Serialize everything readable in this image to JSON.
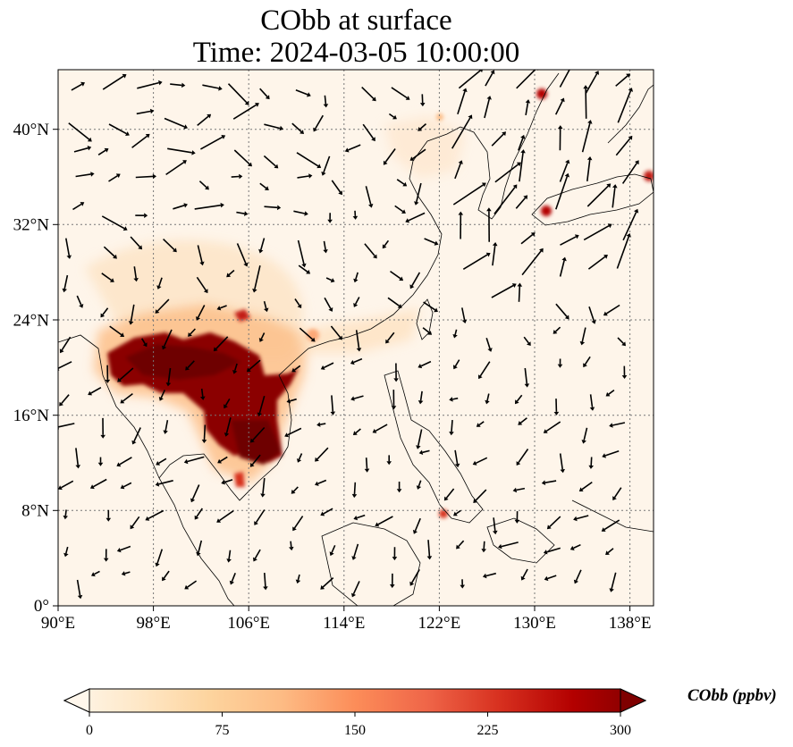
{
  "title": {
    "line1": "CObb at surface",
    "line2": "Time: 2024-03-05 10:00:00"
  },
  "axes": {
    "x_ticks": [
      "90°E",
      "98°E",
      "106°E",
      "114°E",
      "122°E",
      "130°E",
      "138°E"
    ],
    "y_ticks": [
      "40°N",
      "32°N",
      "24°N",
      "16°N",
      "8°N",
      "0°"
    ],
    "lon_range": [
      90,
      140
    ],
    "lat_range": [
      0,
      45
    ],
    "gridlines": "dotted"
  },
  "colorbar": {
    "label": "CObb (ppbv)",
    "ticks": [
      "0",
      "75",
      "150",
      "225",
      "300"
    ],
    "range": [
      0,
      300
    ],
    "colormap": "OrRd",
    "extend": "both",
    "colors": [
      "#fff7ec",
      "#fee8c8",
      "#fdd49e",
      "#fdbb84",
      "#fc8d59",
      "#ef6548",
      "#d7301f",
      "#b30000",
      "#7f0000"
    ]
  },
  "field": {
    "variable": "CObb",
    "hotspots": [
      {
        "region": "Myanmar–Thailand–Laos",
        "lon": 99,
        "lat": 19.5,
        "level": "high"
      },
      {
        "region": "Laos–Cambodia",
        "lon": 106,
        "lat": 15,
        "level": "high"
      },
      {
        "region": "northern Vietnam",
        "lon": 105,
        "lat": 20.5,
        "level": "high"
      },
      {
        "region": "Japan (Kyushu)",
        "lon": 131,
        "lat": 33.5,
        "level": "moderate"
      },
      {
        "region": "Hokkaido",
        "lon": 130.5,
        "lat": 43,
        "level": "moderate"
      },
      {
        "region": "central Japan",
        "lon": 139.5,
        "lat": 36,
        "level": "moderate"
      },
      {
        "region": "Mindanao",
        "lon": 123,
        "lat": 8,
        "level": "moderate"
      }
    ]
  }
}
